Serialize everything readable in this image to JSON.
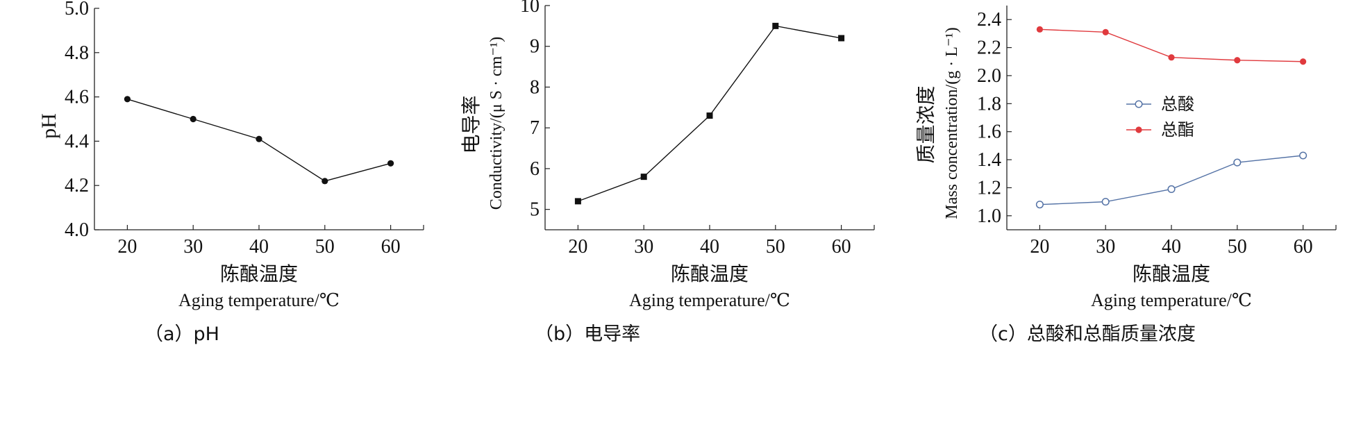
{
  "chart_data": [
    {
      "type": "line",
      "caption": "（a）pH",
      "xlabel_cn": "陈酿温度",
      "xlabel_en": "Aging temperature/℃",
      "ylabel_cn": "",
      "ylabel_en": "pH",
      "x": [
        20,
        30,
        40,
        50,
        60
      ],
      "xticks": [
        "20",
        "30",
        "40",
        "50",
        "60"
      ],
      "xlim": [
        15,
        65
      ],
      "ylim": [
        4.0,
        5.0
      ],
      "yticks": [
        "4.0",
        "4.2",
        "4.4",
        "4.6",
        "4.8",
        "5.0"
      ],
      "series": [
        {
          "values": [
            4.59,
            4.5,
            4.41,
            4.22,
            4.3
          ],
          "color": "#111111",
          "marker": "circle-filled"
        }
      ]
    },
    {
      "type": "line",
      "caption": "（b）电导率",
      "xlabel_cn": "陈酿温度",
      "xlabel_en": "Aging temperature/℃",
      "ylabel_cn": "电导率",
      "ylabel_en": "Conductivity/(μ S · cm⁻¹)",
      "x": [
        20,
        30,
        40,
        50,
        60
      ],
      "xticks": [
        "20",
        "30",
        "40",
        "50",
        "60"
      ],
      "xlim": [
        15,
        65
      ],
      "ylim": [
        4.5,
        10
      ],
      "yticks": [
        "5",
        "6",
        "7",
        "8",
        "9",
        "10"
      ],
      "series": [
        {
          "values": [
            5.2,
            5.8,
            7.3,
            9.5,
            9.2
          ],
          "color": "#111111",
          "marker": "square-filled"
        }
      ]
    },
    {
      "type": "line",
      "caption": "（c）总酸和总酯质量浓度",
      "xlabel_cn": "陈酿温度",
      "xlabel_en": "Aging temperature/℃",
      "ylabel_cn": "质量浓度",
      "ylabel_en": "Mass concentration/(g · L⁻¹)",
      "x": [
        20,
        30,
        40,
        50,
        60
      ],
      "xticks": [
        "20",
        "30",
        "40",
        "50",
        "60"
      ],
      "xlim": [
        15,
        65
      ],
      "ylim": [
        0.9,
        2.5
      ],
      "yticks": [
        "1.0",
        "1.2",
        "1.4",
        "1.6",
        "1.8",
        "2.0",
        "2.2",
        "2.4"
      ],
      "legend_position": "center-left",
      "series": [
        {
          "name": "总酸",
          "values": [
            1.08,
            1.1,
            1.19,
            1.38,
            1.43
          ],
          "color": "#5573a6",
          "marker": "circle-open"
        },
        {
          "name": "总酯",
          "values": [
            2.33,
            2.31,
            2.13,
            2.11,
            2.1
          ],
          "color": "#e03a3e",
          "marker": "circle-filled"
        }
      ]
    }
  ]
}
